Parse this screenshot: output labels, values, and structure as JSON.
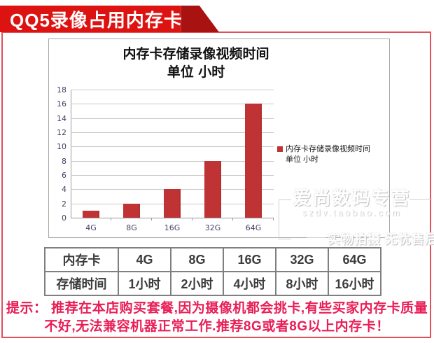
{
  "banner": {
    "title": "QQ5录像占用内存卡"
  },
  "chart": {
    "title_line1": "内存卡存储录像视频时间",
    "title_line2": "单位 小时",
    "legend_line1": "内存卡存储录像视频时间",
    "legend_line2": "单位 小时"
  },
  "chart_data": {
    "type": "bar",
    "title": "内存卡存储录像视频时间 单位小时",
    "categories": [
      "4G",
      "8G",
      "16G",
      "32G",
      "64G"
    ],
    "values": [
      1,
      2,
      4,
      8,
      16
    ],
    "xlabel": "",
    "ylabel": "",
    "ylim": [
      0,
      18
    ],
    "ytick_step": 2,
    "grid": true,
    "legend": [
      "内存卡存储录像视频时间 单位 小时"
    ],
    "legend_position": "right",
    "bar_color": "#c03335"
  },
  "watermark": {
    "line1": "爱尚数码专营",
    "line2": "szdv.taobao.com",
    "line3": "实物拍摄 无忧售后"
  },
  "table": {
    "rows": [
      [
        "内存卡",
        "4G",
        "8G",
        "16G",
        "32G",
        "64G"
      ],
      [
        "存储时间",
        "1小时",
        "2小时",
        "4小时",
        "8小时",
        "16小时"
      ]
    ]
  },
  "tip": {
    "line1": "提示： 推荐在本店购买套餐,因为摄像机都会挑卡,有些买家内存卡质量",
    "line2": "不好,无法兼容机器正常工作.推荐8G或者8G以上内存卡！"
  },
  "colors": {
    "banner_red": "#dd1311",
    "banner_fold_red": "#a81311",
    "frame_red": "#e1505c",
    "bar_red": "#c03335",
    "tip_pink": "#e91e56",
    "axis_label": "#473d63",
    "gridline": "#c6c6c6",
    "table_border": "#7f7f7f"
  }
}
